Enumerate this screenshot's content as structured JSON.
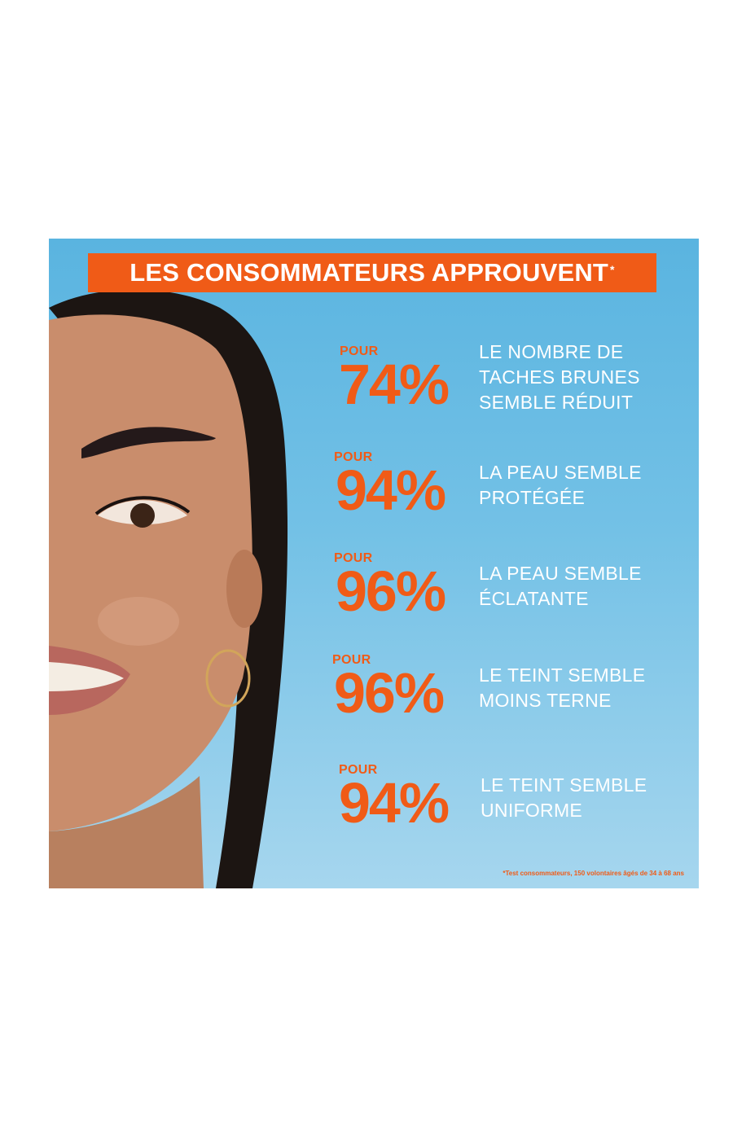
{
  "header": {
    "title": "LES CONSOMMATEURS APPROUVENT",
    "asterisk": "*"
  },
  "stats": [
    {
      "prefix": "POUR",
      "percent": "74%",
      "lines": [
        "LE NOMBRE DE",
        "TACHES BRUNES",
        "SEMBLE RÉDUIT"
      ]
    },
    {
      "prefix": "POUR",
      "percent": "94%",
      "lines": [
        "LA PEAU SEMBLE",
        "PROTÉGÉE"
      ]
    },
    {
      "prefix": "POUR",
      "percent": "96%",
      "lines": [
        "LA PEAU SEMBLE",
        "ÉCLATANTE"
      ]
    },
    {
      "prefix": "POUR",
      "percent": "96%",
      "lines": [
        "LE TEINT SEMBLE",
        "MOINS TERNE"
      ]
    },
    {
      "prefix": "POUR",
      "percent": "94%",
      "lines": [
        "LE TEINT SEMBLE",
        "UNIFORME"
      ]
    }
  ],
  "footnote": "*Test consommateurs, 150 volontaires âgés de 34 à 68 ans",
  "colors": {
    "accent": "#f05b17",
    "background_top": "#5ab4e0",
    "background_bottom": "#a6d6ee",
    "text": "#ffffff"
  }
}
